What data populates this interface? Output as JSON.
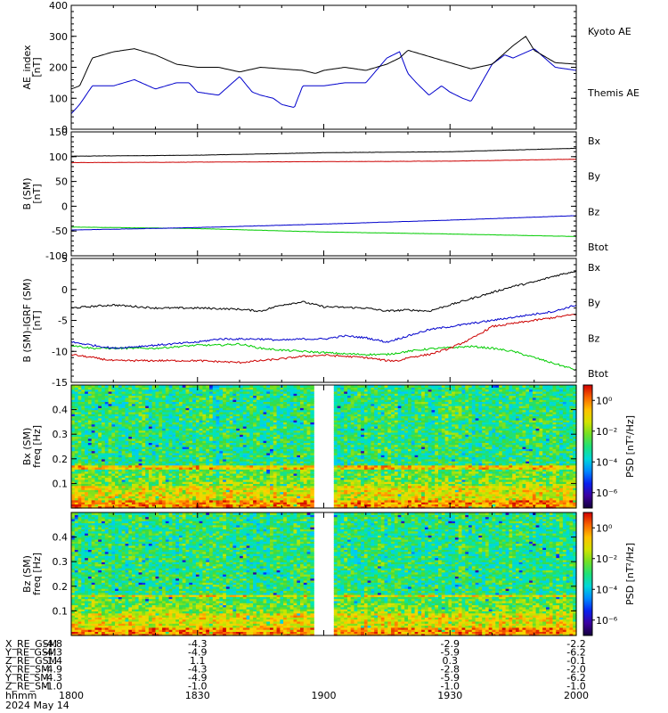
{
  "chart_data": [
    {
      "type": "line",
      "ylabel": "AE_index\n[nT]",
      "ylim": [
        0,
        400
      ],
      "yticks": [
        0,
        100,
        200,
        300,
        400
      ],
      "series": [
        {
          "name": "Kyoto AE",
          "color": "#0000cc",
          "x": [
            1800,
            1802,
            1805,
            1810,
            1815,
            1820,
            1825,
            1828,
            1830,
            1835,
            1840,
            1843,
            1845,
            1848,
            1850,
            1853,
            1855,
            1858,
            1900,
            1905,
            1910,
            1915,
            1918,
            1920,
            1922,
            1925,
            1928,
            1930,
            1933,
            1935,
            1940,
            1943,
            1945,
            1950,
            1955,
            1960
          ],
          "y": [
            50,
            80,
            140,
            140,
            160,
            130,
            150,
            150,
            120,
            110,
            170,
            120,
            110,
            100,
            80,
            70,
            140,
            140,
            140,
            150,
            150,
            230,
            250,
            180,
            150,
            110,
            140,
            120,
            100,
            90,
            210,
            240,
            230,
            260,
            200,
            190
          ]
        },
        {
          "name": "Themis AE",
          "color": "#000000",
          "x": [
            1800,
            1802,
            1805,
            1810,
            1815,
            1820,
            1825,
            1830,
            1835,
            1840,
            1845,
            1850,
            1855,
            1858,
            1900,
            1905,
            1910,
            1915,
            1918,
            1920,
            1925,
            1930,
            1935,
            1940,
            1945,
            1948,
            1950,
            1955,
            1960
          ],
          "y": [
            130,
            140,
            230,
            250,
            260,
            240,
            210,
            200,
            200,
            185,
            200,
            195,
            190,
            180,
            190,
            200,
            190,
            210,
            230,
            255,
            235,
            215,
            195,
            210,
            270,
            300,
            255,
            215,
            210
          ]
        }
      ],
      "right_labels": [
        "Kyoto AE",
        "Themis AE"
      ]
    },
    {
      "type": "line",
      "ylabel": "B (SM)\n[nT]",
      "ylim": [
        -100,
        150
      ],
      "yticks": [
        -100,
        -50,
        0,
        50,
        100,
        150
      ],
      "series": [
        {
          "name": "Bx",
          "color": "#000000",
          "x": [
            1800,
            1830,
            1900,
            1930,
            1960
          ],
          "y": [
            101,
            103,
            108,
            110,
            117
          ]
        },
        {
          "name": "By",
          "color": "#00cc00",
          "x": [
            1800,
            1830,
            1900,
            1930,
            1960
          ],
          "y": [
            -42,
            -45,
            -52,
            -56,
            -61
          ]
        },
        {
          "name": "Bz",
          "color": "#cc0000",
          "x": [
            1800,
            1830,
            1900,
            1930,
            1960
          ],
          "y": [
            88,
            89,
            90,
            91,
            95
          ]
        },
        {
          "name": "Btot",
          "color": "#0000cc",
          "x": [
            1800,
            1830,
            1900,
            1930,
            1960
          ],
          "y": [
            -48,
            -43,
            -36,
            -28,
            -19
          ]
        }
      ],
      "right_labels": [
        "Bx",
        "By",
        "Bz",
        "Btot"
      ]
    },
    {
      "type": "line",
      "ylabel": "B (SM)-IGRF (SM)\n[nT]",
      "ylim": [
        -15,
        5
      ],
      "yticks": [
        -15,
        -10,
        -5,
        0,
        5
      ],
      "series": [
        {
          "name": "Bx",
          "color": "#000000",
          "x": [
            1800,
            1810,
            1820,
            1830,
            1840,
            1845,
            1850,
            1855,
            1900,
            1910,
            1915,
            1920,
            1925,
            1930,
            1935,
            1940,
            1945,
            1950,
            1955,
            1960
          ],
          "y": [
            -3,
            -2.5,
            -3,
            -3,
            -3.2,
            -3.5,
            -2.5,
            -2,
            -2.8,
            -3,
            -3.5,
            -3.3,
            -3.5,
            -2.5,
            -1.5,
            -0.5,
            0.5,
            1.2,
            2.2,
            3
          ]
        },
        {
          "name": "By",
          "color": "#00cc00",
          "x": [
            1800,
            1805,
            1810,
            1820,
            1830,
            1835,
            1840,
            1845,
            1850,
            1855,
            1900,
            1905,
            1910,
            1915,
            1920,
            1925,
            1930,
            1935,
            1940,
            1945,
            1950,
            1955,
            1960
          ],
          "y": [
            -9,
            -9.5,
            -9.5,
            -9.5,
            -9,
            -9,
            -8.8,
            -9.5,
            -9.8,
            -10,
            -10.2,
            -10.4,
            -10.5,
            -10.5,
            -10,
            -9.6,
            -9.4,
            -9.2,
            -9.5,
            -10,
            -11,
            -12,
            -13
          ]
        },
        {
          "name": "Bz",
          "color": "#cc0000",
          "x": [
            1800,
            1805,
            1810,
            1820,
            1830,
            1840,
            1845,
            1850,
            1855,
            1900,
            1910,
            1915,
            1918,
            1920,
            1925,
            1930,
            1935,
            1940,
            1945,
            1950,
            1955,
            1960
          ],
          "y": [
            -10.5,
            -11,
            -11.5,
            -11.5,
            -11.5,
            -11.8,
            -11.5,
            -11.2,
            -10.8,
            -10.6,
            -11,
            -11.5,
            -11.5,
            -11,
            -10.5,
            -9.5,
            -8,
            -6,
            -5.5,
            -5,
            -4.5,
            -4
          ]
        },
        {
          "name": "Btot",
          "color": "#0000cc",
          "x": [
            1800,
            1805,
            1810,
            1820,
            1830,
            1835,
            1840,
            1845,
            1850,
            1855,
            1900,
            1905,
            1910,
            1915,
            1920,
            1925,
            1930,
            1935,
            1940,
            1945,
            1950,
            1955,
            1960
          ],
          "y": [
            -8.5,
            -9,
            -9.5,
            -9,
            -8.5,
            -8,
            -8,
            -8,
            -8.2,
            -8,
            -8,
            -7.5,
            -7.8,
            -8.5,
            -7.5,
            -6.5,
            -6,
            -5.5,
            -5,
            -4.5,
            -4,
            -3.5,
            -2.5
          ]
        }
      ],
      "right_labels": [
        "Bx",
        "By",
        "Bz",
        "Btot"
      ]
    },
    {
      "type": "heatmap",
      "ylabel": "Bx (SM)\nfreq [Hz]",
      "ylim": [
        0,
        0.5
      ],
      "yticks": [
        0.1,
        0.2,
        0.3,
        0.4
      ],
      "gap": [
        1858,
        1902
      ],
      "colorbar": {
        "label": "PSD [nT²/Hz]",
        "ticks": [
          "10⁰",
          "10⁻²",
          "10⁻⁴",
          "10⁻⁶"
        ],
        "tick_log_values": [
          0,
          -2,
          -4,
          -6
        ],
        "range_log": [
          -7,
          1
        ]
      }
    },
    {
      "type": "heatmap",
      "ylabel": "Bz (SM)\nfreq [Hz]",
      "ylim": [
        0,
        0.5
      ],
      "yticks": [
        0.1,
        0.2,
        0.3,
        0.4
      ],
      "gap": [
        1858,
        1902
      ],
      "colorbar": {
        "label": "PSD [nT²/Hz]",
        "ticks": [
          "10⁰",
          "10⁻²",
          "10⁻⁴",
          "10⁻⁶"
        ],
        "tick_log_values": [
          0,
          -2,
          -4,
          -6
        ],
        "range_log": [
          -7,
          1
        ]
      }
    }
  ],
  "x_axis": {
    "range": [
      1800,
      2000
    ],
    "ticks": [
      {
        "value": 1800,
        "label": "1800"
      },
      {
        "value": 1830,
        "label": "1830"
      },
      {
        "value": 1900,
        "label": "1900"
      },
      {
        "value": 1930,
        "label": "1930"
      },
      {
        "value": 2000,
        "label": "2000"
      }
    ]
  },
  "ephemeris": {
    "rows": [
      {
        "label": "X_RE_GSM",
        "values": [
          "-4.8",
          "-4.3",
          "",
          "-2.9",
          "-2.2"
        ]
      },
      {
        "label": "Y_RE_GSM",
        "values": [
          "-4.3",
          "-4.9",
          "",
          "-5.9",
          "-6.2"
        ]
      },
      {
        "label": "Z_RE_GSM",
        "values": [
          "1.4",
          "1.1",
          "",
          "0.3",
          "-0.1"
        ]
      },
      {
        "label": "X_RE_SM",
        "values": [
          "-4.9",
          "-4.3",
          "",
          "-2.8",
          "-2.0"
        ]
      },
      {
        "label": "Y_RE_SM",
        "values": [
          "-4.3",
          "-4.9",
          "",
          "-5.9",
          "-6.2"
        ]
      },
      {
        "label": "Z_RE_SM",
        "values": [
          "-1.0",
          "-1.0",
          "",
          "-1.0",
          "-1.0"
        ]
      }
    ],
    "time_label": "hhmm",
    "date": "2024 May 14"
  }
}
